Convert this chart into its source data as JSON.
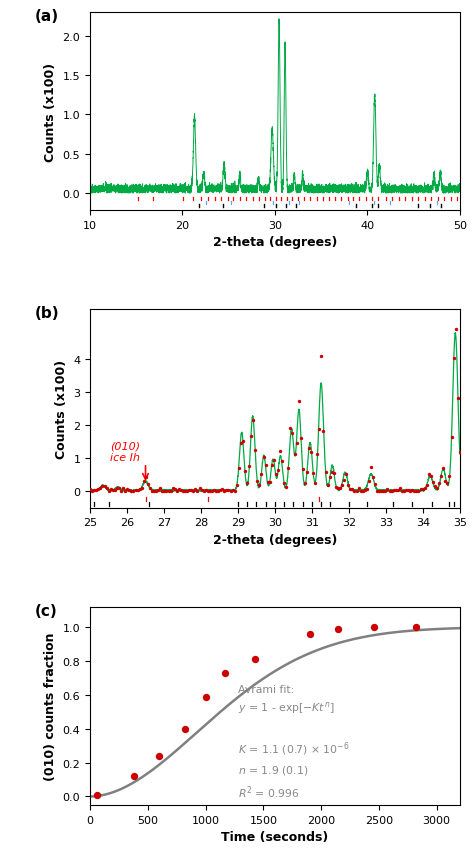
{
  "panel_a": {
    "title": "(a)",
    "xlabel": "2-theta (degrees)",
    "ylabel": "Counts (x100)",
    "xlim": [
      10,
      50
    ],
    "ylim": [
      -0.22,
      2.3
    ],
    "yticks": [
      0.0,
      0.5,
      1.0,
      1.5,
      2.0
    ],
    "line_color": "#00aa44",
    "red_ticks": [
      15.2,
      16.8,
      20.1,
      21.1,
      22.0,
      22.8,
      23.5,
      24.2,
      24.9,
      25.5,
      26.2,
      26.9,
      27.6,
      28.3,
      28.9,
      29.5,
      30.1,
      30.7,
      31.3,
      31.9,
      32.5,
      33.1,
      33.8,
      34.5,
      35.2,
      35.8,
      36.5,
      37.2,
      37.9,
      38.5,
      39.1,
      39.8,
      40.5,
      41.2,
      42.0,
      42.7,
      43.4,
      44.1,
      44.8,
      45.5,
      46.2,
      46.9,
      47.6,
      48.3,
      49.0,
      49.7
    ],
    "blue_ticks": [
      22.5,
      25.3,
      29.8,
      31.5,
      32.6,
      38.0,
      40.7,
      42.5,
      47.5
    ],
    "black_ticks": [
      21.8,
      24.4,
      28.8,
      30.1,
      31.2,
      32.3,
      38.8,
      40.5,
      41.1,
      45.5,
      46.8,
      48.0
    ]
  },
  "panel_b": {
    "title": "(b)",
    "xlabel": "2-theta (degrees)",
    "ylabel": "Counts (x100)",
    "xlim": [
      25,
      35
    ],
    "ylim": [
      -0.5,
      5.5
    ],
    "yticks": [
      0.0,
      1.0,
      2.0,
      3.0,
      4.0
    ],
    "line_color": "#00aa44",
    "dot_color": "#cc0000",
    "annotation_text": "(010)\nice Ih",
    "red_ticks": [
      26.5,
      28.2,
      31.2
    ],
    "black_ticks": [
      25.1,
      25.5,
      26.6,
      29.0,
      29.25,
      29.5,
      29.75,
      30.0,
      30.25,
      30.5,
      30.75,
      31.0,
      31.25,
      31.5,
      32.0,
      32.5,
      33.2,
      33.7,
      34.25,
      34.7,
      34.85
    ]
  },
  "panel_c": {
    "title": "(c)",
    "xlabel": "Time (seconds)",
    "ylabel": "(010) counts fraction",
    "xlim": [
      0,
      3200
    ],
    "ylim": [
      -0.05,
      1.12
    ],
    "yticks": [
      0.0,
      0.2,
      0.4,
      0.6,
      0.8,
      1.0
    ],
    "xticks": [
      0,
      500,
      1000,
      1500,
      2000,
      2500,
      3000
    ],
    "data_x": [
      60,
      380,
      600,
      820,
      1000,
      1170,
      1430,
      1900,
      2150,
      2460,
      2820
    ],
    "data_y": [
      0.01,
      0.12,
      0.24,
      0.4,
      0.59,
      0.73,
      0.81,
      0.96,
      0.99,
      1.0,
      1.0
    ],
    "dot_color": "#cc0000",
    "line_color": "#808080",
    "K": 1.1e-06,
    "n": 1.9
  }
}
